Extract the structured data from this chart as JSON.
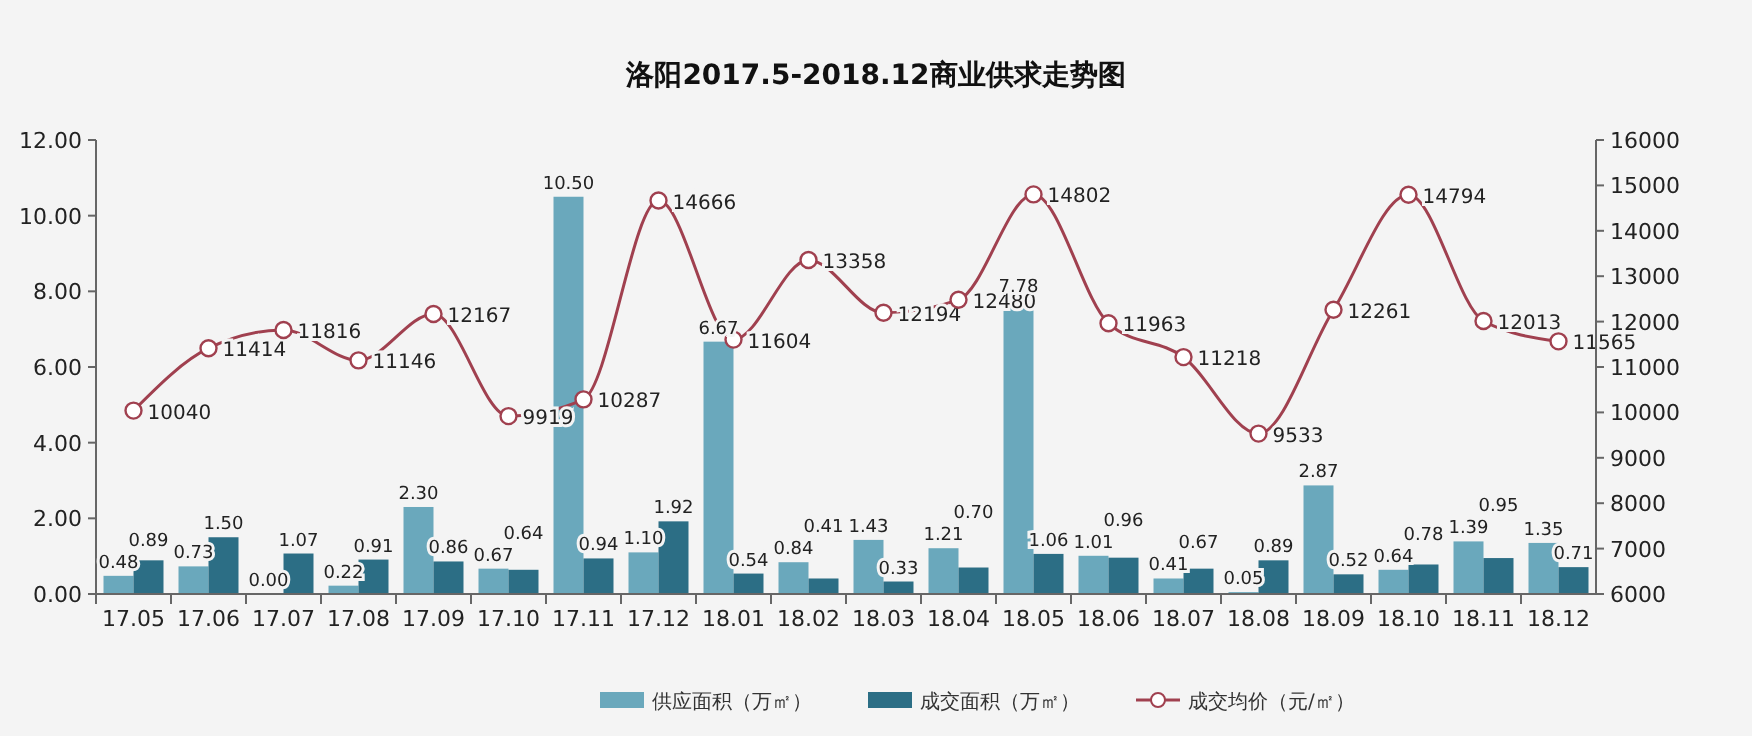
{
  "chart_data": {
    "type": "bar",
    "title": "洛阳2017.5-2018.12商业供求走势图",
    "categories": [
      "17.05",
      "17.06",
      "17.07",
      "17.08",
      "17.09",
      "17.10",
      "17.11",
      "17.12",
      "18.01",
      "18.02",
      "18.03",
      "18.04",
      "18.05",
      "18.06",
      "18.07",
      "18.08",
      "18.09",
      "18.10",
      "18.11",
      "18.12"
    ],
    "series": [
      {
        "name": "供应面积（万㎡）",
        "color": "#6aa8bc",
        "values": [
          0.48,
          0.73,
          0.0,
          0.22,
          2.3,
          0.67,
          10.5,
          1.1,
          6.67,
          0.84,
          1.43,
          1.21,
          7.78,
          1.01,
          0.41,
          0.05,
          2.87,
          0.64,
          1.39,
          1.35
        ],
        "value_labels": [
          "0.48",
          "0.73",
          "0.00",
          "0.22",
          "2.30",
          "0.67",
          "10.50",
          "1.10",
          "6.67",
          "0.84",
          "1.43",
          "1.21",
          "7.78",
          "1.01",
          "0.41",
          "0.05",
          "2.87",
          "0.64",
          "1.39",
          "1.35"
        ]
      },
      {
        "name": "成交面积（万㎡）",
        "color": "#2c6e85",
        "values": [
          0.89,
          1.5,
          1.07,
          0.91,
          0.86,
          0.64,
          0.94,
          1.92,
          0.54,
          0.41,
          0.33,
          0.7,
          1.06,
          0.96,
          0.67,
          0.89,
          0.52,
          0.78,
          0.95,
          0.71
        ],
        "value_labels": [
          "0.89",
          "1.50",
          "1.07",
          "0.91",
          "0.86",
          "0.64",
          "0.94",
          "1.92",
          "0.54",
          "0.41",
          "0.33",
          "0.70",
          "1.06",
          "0.96",
          "0.67",
          "0.89",
          "0.52",
          "0.78",
          "0.95",
          "0.71"
        ]
      },
      {
        "name": "成交均价（元/㎡）",
        "type": "line",
        "axis": "y2",
        "color": "#a0404f",
        "marker": "circle",
        "values": [
          10040,
          11414,
          11816,
          11146,
          12167,
          9919,
          10287,
          14666,
          11604,
          13358,
          12194,
          12480,
          14802,
          11963,
          11218,
          9533,
          12261,
          14794,
          12013,
          11565
        ],
        "value_labels": [
          "10040",
          "11414",
          "11816",
          "11146",
          "12167",
          "9919",
          "10287",
          "14666",
          "11604",
          "13358",
          "12194",
          "12480",
          "14802",
          "11963",
          "11218",
          "9533",
          "12261",
          "14794",
          "12013",
          "11565"
        ]
      }
    ],
    "ylim": [
      0,
      12
    ],
    "yticks": [
      {
        "value": 0,
        "label": "0.00"
      },
      {
        "value": 2,
        "label": "2.00"
      },
      {
        "value": 4,
        "label": "4.00"
      },
      {
        "value": 6,
        "label": "6.00"
      },
      {
        "value": 8,
        "label": "8.00"
      },
      {
        "value": 10,
        "label": "10.00"
      },
      {
        "value": 12,
        "label": "12.00"
      }
    ],
    "y2lim": [
      6000,
      16000
    ],
    "y2ticks": [
      6000,
      7000,
      8000,
      9000,
      10000,
      11000,
      12000,
      13000,
      14000,
      15000,
      16000
    ],
    "legend": "bottom"
  }
}
